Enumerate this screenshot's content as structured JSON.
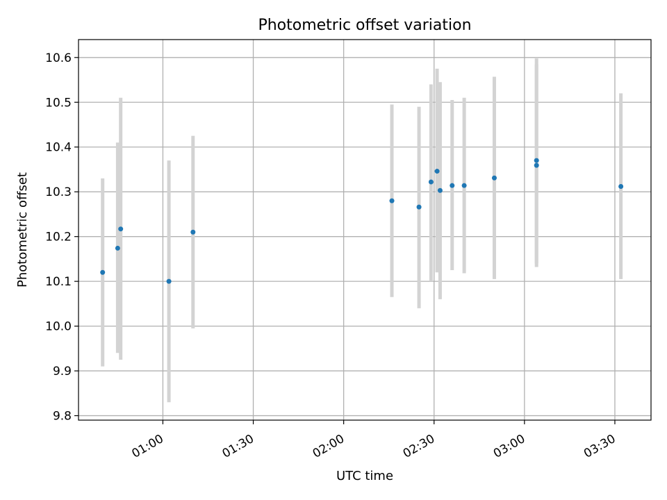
{
  "chart_data": {
    "type": "scatter",
    "title": "Photometric offset variation",
    "xlabel": "UTC time",
    "ylabel": "Photometric offset",
    "x_ticks": [
      "01:00",
      "01:30",
      "02:00",
      "02:30",
      "03:00",
      "03:30"
    ],
    "y_ticks": [
      "9.8",
      "9.9",
      "10.0",
      "10.1",
      "10.2",
      "10.3",
      "10.4",
      "10.5",
      "10.6"
    ],
    "xlim": [
      "00:32",
      "03:42"
    ],
    "ylim": [
      9.79,
      10.64
    ],
    "grid": true,
    "colors": {
      "points": "#1f77b4",
      "errorbars": "#d3d3d3",
      "grid": "#b0b0b0"
    },
    "series": [
      {
        "points": [
          {
            "x": "00:40",
            "y": 10.12,
            "ylow": 9.91,
            "yhigh": 10.33
          },
          {
            "x": "00:45",
            "y": 10.174,
            "ylow": 9.94,
            "yhigh": 10.41
          },
          {
            "x": "00:46",
            "y": 10.217,
            "ylow": 9.925,
            "yhigh": 10.51
          },
          {
            "x": "01:02",
            "y": 10.1,
            "ylow": 9.83,
            "yhigh": 10.37
          },
          {
            "x": "01:10",
            "y": 10.21,
            "ylow": 9.995,
            "yhigh": 10.425
          },
          {
            "x": "02:16",
            "y": 10.28,
            "ylow": 10.065,
            "yhigh": 10.495
          },
          {
            "x": "02:25",
            "y": 10.266,
            "ylow": 10.04,
            "yhigh": 10.49
          },
          {
            "x": "02:29",
            "y": 10.322,
            "ylow": 10.1,
            "yhigh": 10.54
          },
          {
            "x": "02:31",
            "y": 10.346,
            "ylow": 10.12,
            "yhigh": 10.575
          },
          {
            "x": "02:32",
            "y": 10.303,
            "ylow": 10.06,
            "yhigh": 10.545
          },
          {
            "x": "02:36",
            "y": 10.314,
            "ylow": 10.125,
            "yhigh": 10.505
          },
          {
            "x": "02:40",
            "y": 10.314,
            "ylow": 10.118,
            "yhigh": 10.51
          },
          {
            "x": "02:50",
            "y": 10.331,
            "ylow": 10.105,
            "yhigh": 10.557
          },
          {
            "x": "03:04",
            "y": 10.37,
            "ylow": 10.14,
            "yhigh": 10.598
          },
          {
            "x": "03:04",
            "y": 10.359,
            "ylow": 10.132,
            "yhigh": 10.585
          },
          {
            "x": "03:32",
            "y": 10.312,
            "ylow": 10.105,
            "yhigh": 10.52
          }
        ]
      }
    ]
  }
}
